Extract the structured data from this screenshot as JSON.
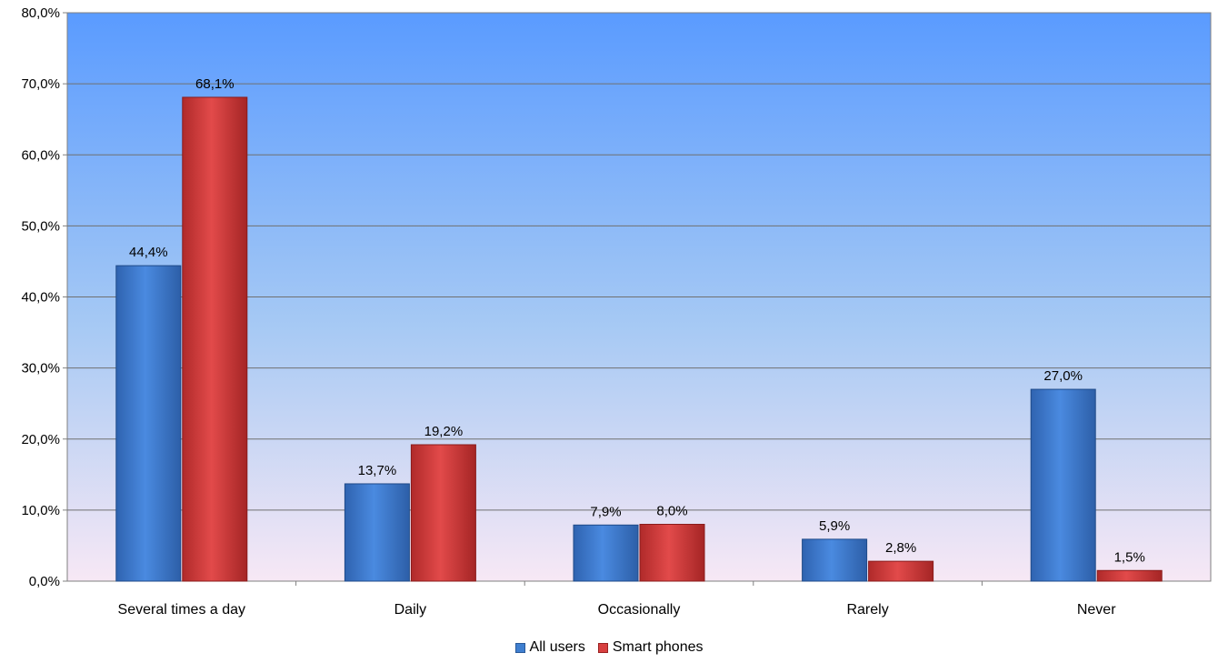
{
  "chart_data": {
    "type": "bar",
    "categories": [
      "Several times a day",
      "Daily",
      "Occasionally",
      "Rarely",
      "Never"
    ],
    "series": [
      {
        "name": "All users",
        "values": [
          44.4,
          13.7,
          7.9,
          5.9,
          27.0
        ],
        "labels": [
          "44,4%",
          "13,7%",
          "7,9%",
          "5,9%",
          "27,0%"
        ],
        "color": "#3F7FD0"
      },
      {
        "name": "Smart phones",
        "values": [
          68.1,
          19.2,
          8.0,
          2.8,
          1.5
        ],
        "labels": [
          "68,1%",
          "19,2%",
          "8,0%",
          "2,8%",
          "1,5%"
        ],
        "color": "#D84040"
      }
    ],
    "ylim": [
      0,
      80
    ],
    "yticks": [
      "0,0%",
      "10,0%",
      "20,0%",
      "30,0%",
      "40,0%",
      "50,0%",
      "60,0%",
      "70,0%",
      "80,0%"
    ],
    "grid": true,
    "legend_position": "bottom",
    "background_gradient": [
      "#5A9BFF",
      "#F7E8F5"
    ],
    "xlabel": "",
    "ylabel": ""
  }
}
